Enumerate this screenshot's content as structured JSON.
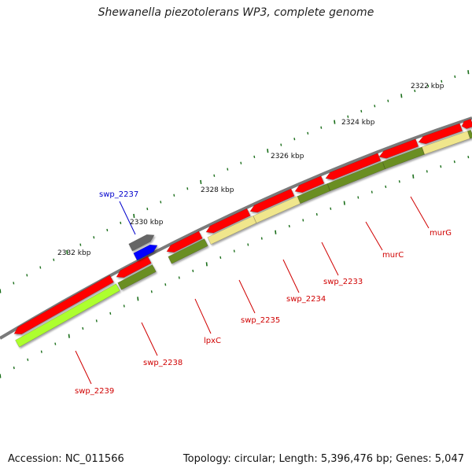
{
  "title": "Shewanella piezotolerans WP3, complete genome",
  "footer": {
    "accession": "Accession: NC_011566",
    "summary": "Topology: circular; Length: 5,396,476 bp; Genes: 5,047"
  },
  "colors": {
    "backbone": "#7a7a7a",
    "gene_red": "#ff0000",
    "gene_dark_green": "#6b8e23",
    "gene_light_green": "#adff2f",
    "gene_khaki": "#f0e68c",
    "gene_gray": "#666666",
    "gene_blue": "#0000ff",
    "scale_ticks": "#1a6e1a",
    "label_red": "#d00000",
    "label_blue": "#0000cc"
  },
  "scale_labels": [
    "2322 kbp",
    "2324 kbp",
    "2326 kbp",
    "2328 kbp",
    "2330 kbp",
    "2332 kbp"
  ],
  "gene_labels": [
    {
      "id": "swp_2237",
      "text": "swp_2237",
      "color": "blue"
    },
    {
      "id": "murG",
      "text": "murG",
      "color": "red"
    },
    {
      "id": "murC",
      "text": "murC",
      "color": "red"
    },
    {
      "id": "swp_2233",
      "text": "swp_2233",
      "color": "red"
    },
    {
      "id": "swp_2234",
      "text": "swp_2234",
      "color": "red"
    },
    {
      "id": "swp_2235",
      "text": "swp_2235",
      "color": "red"
    },
    {
      "id": "lpxC",
      "text": "lpxC",
      "color": "red"
    },
    {
      "id": "swp_2238",
      "text": "swp_2238",
      "color": "red"
    },
    {
      "id": "swp_2239",
      "text": "swp_2239",
      "color": "red"
    }
  ]
}
